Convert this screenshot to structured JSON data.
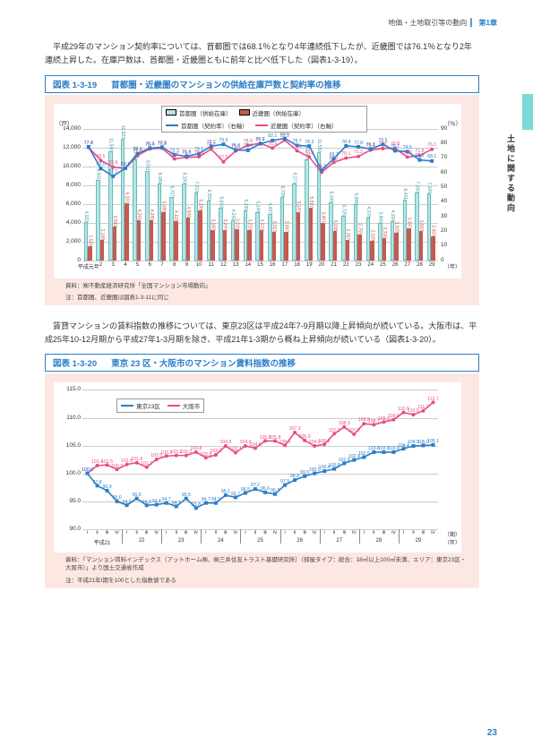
{
  "header": {
    "breadcrumb": "地価・土地取引等の動向",
    "chapter": "第1章"
  },
  "sideTab": "土地に関する動向",
  "pageNumber": "23",
  "para1": "平成29年のマンション契約率については、首都圏では68.1％となり4年連続低下したが、近畿圏では76.1％となり2年連続上昇した。在庫戸数は、首都圏・近畿圏ともに前年と比べ低下した（図表1-3-19）。",
  "para2": "賃貸マンションの賃料指数の推移については、東京23区は平成24年7-9月期以降上昇傾向が続いている。大阪市は、平成25年10-12月期から平成27年1-3月期を除き、平成21年1-3期から概ね上昇傾向が続いている（図表1-3-20）。",
  "chart1": {
    "label": "図表 1-3-19",
    "title": "首都圏・近畿圏のマンションの供給在庫戸数と契約率の推移",
    "note1": "資料：㈱不動産経済研究所「全国マンション市場動向」",
    "note2": "注：首都圏、近畿圏は図表1-3-11に同じ",
    "yAxisLeft": {
      "unit": "（戸）",
      "min": 0,
      "max": 14000,
      "step": 2000
    },
    "yAxisRight": {
      "unit": "（％）",
      "min": 0,
      "max": 90,
      "step": 10
    },
    "xLabel": "（年）",
    "xStart": "平成元年",
    "xVals": [
      "2",
      "3",
      "4",
      "5",
      "6",
      "7",
      "8",
      "9",
      "10",
      "11",
      "12",
      "13",
      "14",
      "15",
      "16",
      "17",
      "18",
      "19",
      "20",
      "21",
      "22",
      "23",
      "24",
      "25",
      "26",
      "27",
      "28",
      "29"
    ],
    "legend": {
      "barTokyo": "首都圏（供給在庫）",
      "barKinki": "近畿圏（供給在庫）",
      "lineTokyo": "首都圏（契約率）（右軸）",
      "lineKinki": "近畿圏（契約率）（右軸）"
    },
    "colors": {
      "barTokyo": "#b8e4e4",
      "barKinki": "#c45a50",
      "lineTokyo": "#2a7ec7",
      "lineKinki": "#e84c8b",
      "grid": "#cccccc",
      "bg": "#fde7e2",
      "plotBg": "#ffffff"
    },
    "barTokyo": [
      4022,
      8501,
      11590,
      12922,
      10763,
      9511,
      8189,
      6707,
      8150,
      7219,
      6359,
      5610,
      4242,
      5330,
      5149,
      4937,
      6708,
      8173,
      10763,
      11532,
      6166,
      4725,
      5988,
      4578,
      3966,
      4156,
      6431,
      7160,
      7106
    ],
    "barKinki": [
      1526,
      2148,
      3592,
      6101,
      4261,
      4280,
      5088,
      4115,
      4506,
      5299,
      3182,
      3247,
      3311,
      3233,
      3172,
      3013,
      2997,
      5147,
      5597,
      3951,
      3138,
      2167,
      2755,
      2028,
      2330,
      2928,
      3347,
      3062,
      2503
    ],
    "lineTokyo": [
      77.8,
      63.0,
      57.7,
      63.1,
      73.2,
      76.9,
      77.5,
      72.3,
      71.4,
      73.1,
      78.2,
      79.5,
      75.6,
      75.4,
      79.9,
      82.1,
      83.5,
      78.7,
      78.3,
      61.7,
      69.7,
      78.4,
      77.8,
      76.3,
      79.5,
      75.1,
      74.5,
      68.8,
      68.1
    ],
    "lineKinki": [
      77.4,
      68.5,
      63.9,
      63.1,
      71.8,
      76.4,
      76.8,
      69.6,
      70.5,
      71.0,
      76.2,
      67.5,
      75.0,
      78.8,
      80.2,
      76.9,
      82.3,
      75.1,
      70.8,
      60.3,
      67.2,
      70.1,
      71.2,
      75.6,
      76.7,
      76.8,
      70.8,
      71.8,
      76.1
    ]
  },
  "chart2": {
    "label": "図表 1-3-20",
    "title": "東京 23 区・大阪市のマンション賃料指数の推移",
    "note1": "資料：「マンション賃料インデックス（アットホーム㈱、㈱三井住友トラスト基礎研究所）（部屋タイプ：総合：18㎡以上100㎡未満、エリア：東京23区・大阪市）」より国土交通省作成",
    "note2": "注：平成21年Ⅰ期を100とした指数値である",
    "yAxis": {
      "min": 90.0,
      "max": 115.0,
      "step": 5.0
    },
    "xLabel": "（期）",
    "xLabel2": "（年）",
    "quarters": [
      "Ⅰ",
      "Ⅱ",
      "Ⅲ",
      "Ⅳ"
    ],
    "years": [
      "平成21",
      "22",
      "23",
      "24",
      "25",
      "26",
      "27",
      "28",
      "29"
    ],
    "legend": {
      "lineTokyo": "東京23区",
      "lineOsaka": "大阪市"
    },
    "colors": {
      "lineTokyo": "#2a7ec7",
      "lineOsaka": "#e84c8b",
      "grid": "#cccccc",
      "bg": "#fde7e2",
      "plotBg": "#ffffff"
    },
    "lineTokyo": [
      100.0,
      97.8,
      96.9,
      95.0,
      94.3,
      95.5,
      94.3,
      94.4,
      94.7,
      94.1,
      95.5,
      93.8,
      94.7,
      94.7,
      96.1,
      95.7,
      96.5,
      97.2,
      96.6,
      96.3,
      97.9,
      98.8,
      99.5,
      100.0,
      100.4,
      100.8,
      101.8,
      102.4,
      102.9,
      103.8,
      103.8,
      103.8,
      104.4,
      104.9,
      105.0,
      105.1
    ],
    "lineOsaka": [
      100.0,
      101.4,
      101.5,
      100.7,
      101.6,
      101.9,
      101.1,
      102.5,
      103.1,
      103.2,
      103.2,
      103.8,
      102.8,
      103.3,
      104.9,
      103.7,
      104.9,
      104.5,
      105.8,
      105.8,
      105.0,
      107.3,
      105.9,
      104.9,
      105.2,
      107.1,
      108.3,
      107.0,
      108.9,
      108.7,
      109.2,
      109.6,
      110.9,
      110.5,
      111.2,
      112.7
    ]
  }
}
